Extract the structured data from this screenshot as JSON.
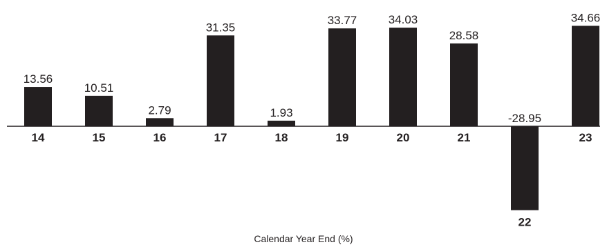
{
  "chart_data": {
    "type": "bar",
    "categories": [
      "14",
      "15",
      "16",
      "17",
      "18",
      "19",
      "20",
      "21",
      "22",
      "23"
    ],
    "values": [
      13.56,
      10.51,
      2.79,
      31.35,
      1.93,
      33.77,
      34.03,
      28.58,
      -28.95,
      34.66
    ],
    "value_labels": [
      "13.56",
      "10.51",
      "2.79",
      "31.35",
      "1.93",
      "33.77",
      "34.03",
      "28.58",
      "-28.95",
      "34.66"
    ],
    "xlabel": "Calendar Year End (%)",
    "ylim": [
      -30,
      37
    ],
    "grid": false,
    "bar_color": "#231f20"
  }
}
